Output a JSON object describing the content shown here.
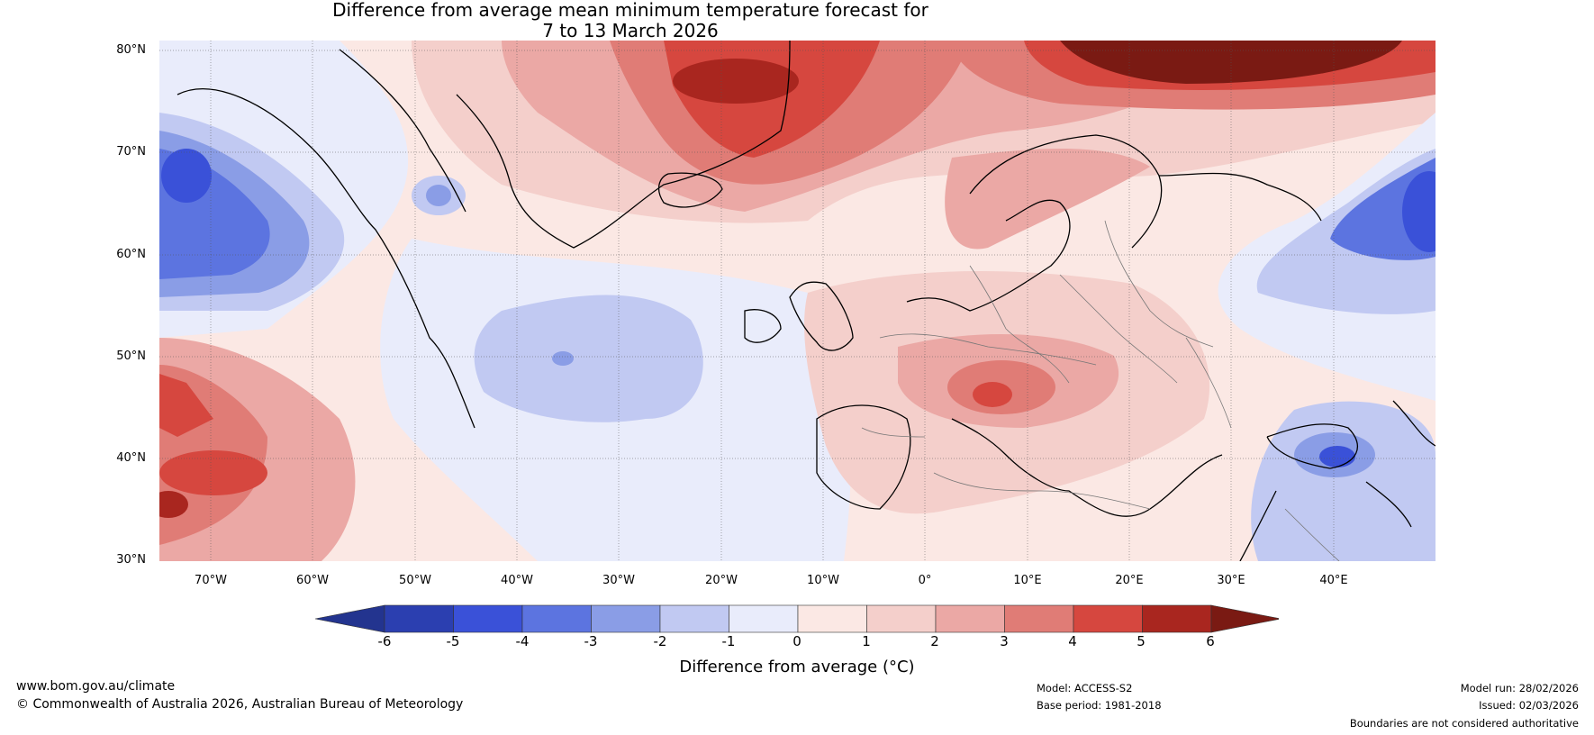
{
  "title": {
    "line1": "Difference from average mean minimum temperature forecast for",
    "line2": "7 to 13 March 2026"
  },
  "latitude_labels": [
    "80°N",
    "70°N",
    "60°N",
    "50°N",
    "40°N",
    "30°N"
  ],
  "longitude_labels": [
    "70°W",
    "60°W",
    "50°W",
    "40°W",
    "30°W",
    "20°W",
    "10°W",
    "0°",
    "10°E",
    "20°E",
    "30°E",
    "40°E"
  ],
  "colorbar": {
    "ticks": [
      "-6",
      "-5",
      "-4",
      "-3",
      "-2",
      "-1",
      "0",
      "1",
      "2",
      "3",
      "4",
      "5",
      "6"
    ],
    "colors": [
      "#23348f",
      "#2b3fb0",
      "#3a51d8",
      "#5c74e0",
      "#8a9de6",
      "#c1c9f2",
      "#e9ecfb",
      "#fbe8e4",
      "#f4cfcb",
      "#eba8a5",
      "#e07c76",
      "#d6473f",
      "#a9261f",
      "#7a1a13"
    ],
    "label": "Difference from average (°C)"
  },
  "footer": {
    "website": "www.bom.gov.au/climate",
    "copyright": "© Commonwealth of Australia 2026, Australian Bureau of Meteorology",
    "model": "Model: ACCESS-S2",
    "base_period": "Base period: 1981-2018",
    "model_run": "Model run: 28/02/2026",
    "issued": "Issued: 02/03/2026",
    "disclaimer": "Boundaries are not considered authoritative"
  },
  "map_extent": {
    "lon_range": [
      -75,
      50
    ],
    "lat_range": [
      30,
      81
    ],
    "region": "North Atlantic and Europe"
  }
}
